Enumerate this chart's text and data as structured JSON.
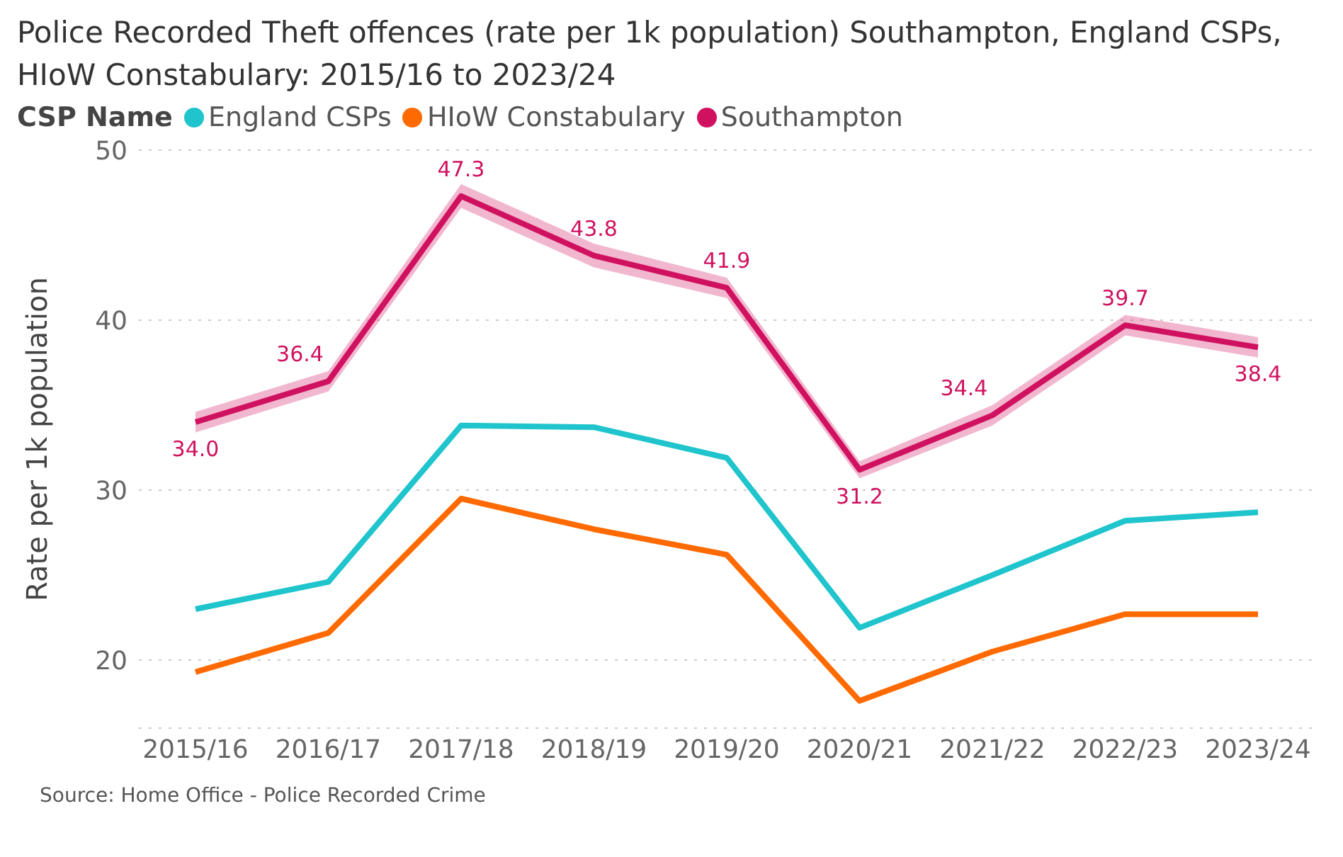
{
  "chart_data": {
    "type": "line",
    "title": "Police Recorded Theft offences (rate per 1k population) Southampton, England CSPs, HIoW Constabulary: 2015/16 to 2023/24",
    "legend_title": "CSP Name",
    "ylabel": "Rate per 1k population",
    "categories": [
      "2015/16",
      "2016/17",
      "2017/18",
      "2018/19",
      "2019/20",
      "2020/21",
      "2021/22",
      "2022/23",
      "2023/24"
    ],
    "series": [
      {
        "name": "England CSPs",
        "color": "#1fc4cc",
        "values": [
          23.0,
          24.6,
          33.8,
          33.7,
          31.9,
          21.9,
          25.0,
          28.2,
          28.7
        ]
      },
      {
        "name": "HIoW Constabulary",
        "color": "#ff6a00",
        "values": [
          19.3,
          21.6,
          29.5,
          27.7,
          26.2,
          17.6,
          20.5,
          22.7,
          22.7
        ]
      },
      {
        "name": "Southampton",
        "color": "#d0115f",
        "values": [
          34.0,
          36.4,
          47.3,
          43.8,
          41.9,
          31.2,
          34.4,
          39.7,
          38.4
        ],
        "value_labels": [
          "34.0",
          "36.4",
          "47.3",
          "43.8",
          "41.9",
          "31.2",
          "34.4",
          "39.7",
          "38.4"
        ],
        "lower": [
          33.4,
          35.8,
          46.6,
          43.1,
          41.3,
          30.7,
          33.8,
          39.1,
          37.8
        ],
        "upper": [
          34.6,
          37.0,
          48.0,
          44.5,
          42.5,
          31.7,
          35.0,
          40.3,
          39.0
        ]
      }
    ],
    "ylim": [
      16,
      50
    ],
    "yticks": [
      20,
      30,
      40,
      50
    ],
    "grid": "y",
    "legend": "top left",
    "annotations": [
      "Source: Home Office - Police Recorded Crime"
    ]
  }
}
